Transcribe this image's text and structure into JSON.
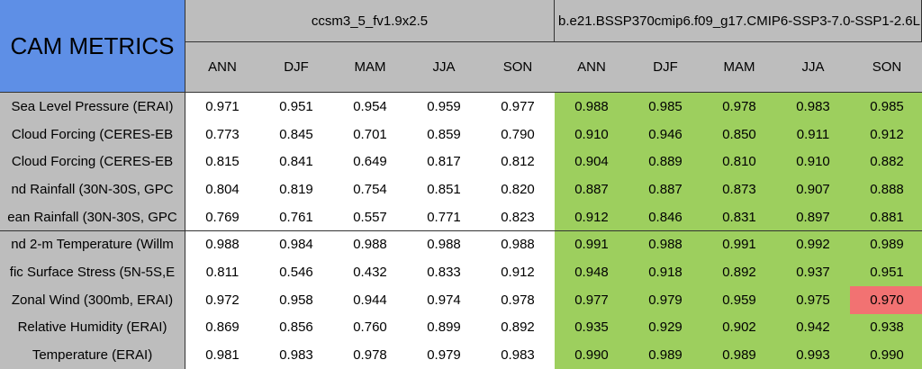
{
  "table": {
    "corner": "CAM METRICS",
    "groups": [
      {
        "label": "ccsm3_5_fv1.9x2.5",
        "fill": "#ffffff"
      },
      {
        "label": "b.e21.BSSP370cmip6.f09_g17.CMIP6-SSP3-7.0-SSP1-2.6L",
        "fill": "#9dcf5e"
      }
    ],
    "seasons": [
      "ANN",
      "DJF",
      "MAM",
      "JJA",
      "SON"
    ],
    "highlight": {
      "row": 7,
      "column": 9,
      "fill": "#f27272"
    },
    "rows": [
      {
        "label": "Sea Level Pressure (ERAI)",
        "cells": [
          "0.971",
          "0.951",
          "0.954",
          "0.959",
          "0.977",
          "0.988",
          "0.985",
          "0.978",
          "0.983",
          "0.985"
        ]
      },
      {
        "label": "Cloud Forcing (CERES-EB",
        "cells": [
          "0.773",
          "0.845",
          "0.701",
          "0.859",
          "0.790",
          "0.910",
          "0.946",
          "0.850",
          "0.911",
          "0.912"
        ]
      },
      {
        "label": "Cloud Forcing (CERES-EB",
        "cells": [
          "0.815",
          "0.841",
          "0.649",
          "0.817",
          "0.812",
          "0.904",
          "0.889",
          "0.810",
          "0.910",
          "0.882"
        ]
      },
      {
        "label": "nd Rainfall (30N-30S, GPC",
        "cells": [
          "0.804",
          "0.819",
          "0.754",
          "0.851",
          "0.820",
          "0.887",
          "0.887",
          "0.873",
          "0.907",
          "0.888"
        ]
      },
      {
        "label": "ean Rainfall (30N-30S, GPC",
        "cells": [
          "0.769",
          "0.761",
          "0.557",
          "0.771",
          "0.823",
          "0.912",
          "0.846",
          "0.831",
          "0.897",
          "0.881"
        ]
      },
      {
        "label": "nd 2-m Temperature (Willm",
        "cells": [
          "0.988",
          "0.984",
          "0.988",
          "0.988",
          "0.988",
          "0.991",
          "0.988",
          "0.991",
          "0.992",
          "0.989"
        ]
      },
      {
        "label": "fic Surface Stress (5N-5S,E",
        "cells": [
          "0.811",
          "0.546",
          "0.432",
          "0.833",
          "0.912",
          "0.948",
          "0.918",
          "0.892",
          "0.937",
          "0.951"
        ]
      },
      {
        "label": "Zonal Wind (300mb, ERAI)",
        "cells": [
          "0.972",
          "0.958",
          "0.944",
          "0.974",
          "0.978",
          "0.977",
          "0.979",
          "0.959",
          "0.975",
          "0.970"
        ]
      },
      {
        "label": "Relative Humidity (ERAI)",
        "cells": [
          "0.869",
          "0.856",
          "0.760",
          "0.899",
          "0.892",
          "0.935",
          "0.929",
          "0.902",
          "0.942",
          "0.938"
        ]
      },
      {
        "label": "Temperature (ERAI)",
        "cells": [
          "0.981",
          "0.983",
          "0.978",
          "0.979",
          "0.983",
          "0.990",
          "0.989",
          "0.989",
          "0.993",
          "0.990"
        ]
      }
    ]
  }
}
